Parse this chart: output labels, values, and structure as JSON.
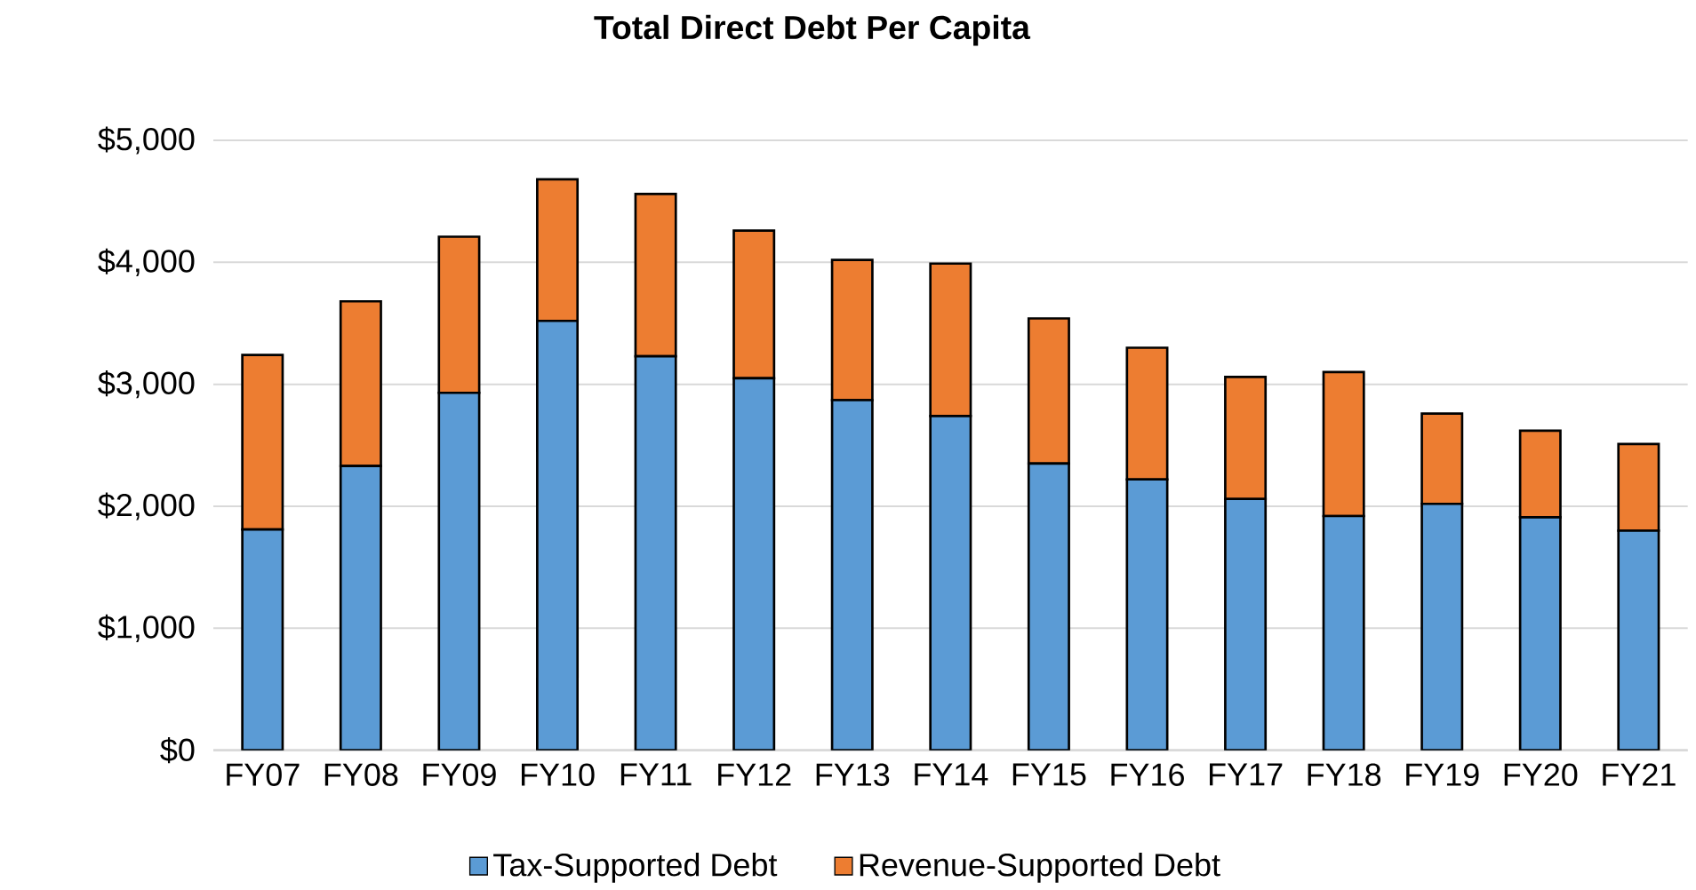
{
  "chart_data": {
    "type": "bar",
    "title": "Total Direct Debt Per Capita",
    "categories": [
      "FY07",
      "FY08",
      "FY09",
      "FY10",
      "FY11",
      "FY12",
      "FY13",
      "FY14",
      "FY15",
      "FY16",
      "FY17",
      "FY18",
      "FY19",
      "FY20",
      "FY21"
    ],
    "series": [
      {
        "name": "Tax-Supported Debt",
        "color": "#5b9bd5",
        "values": [
          1810,
          2330,
          2930,
          3520,
          3230,
          3050,
          2870,
          2740,
          2350,
          2220,
          2060,
          1920,
          2020,
          1910,
          1800
        ]
      },
      {
        "name": "Revenue-Supported Debt",
        "color": "#ed7d31",
        "values": [
          1430,
          1350,
          1280,
          1160,
          1330,
          1210,
          1150,
          1250,
          1190,
          1080,
          1000,
          1180,
          740,
          710,
          710
        ]
      }
    ],
    "stacked": true,
    "ylim": [
      0,
      5000
    ],
    "yticks": [
      {
        "value": 0,
        "label": "$0"
      },
      {
        "value": 1000,
        "label": "$1,000"
      },
      {
        "value": 2000,
        "label": "$2,000"
      },
      {
        "value": 3000,
        "label": "$3,000"
      },
      {
        "value": 4000,
        "label": "$4,000"
      },
      {
        "value": 5000,
        "label": "$5,000"
      }
    ],
    "grid": "y",
    "legend": "bottom"
  }
}
